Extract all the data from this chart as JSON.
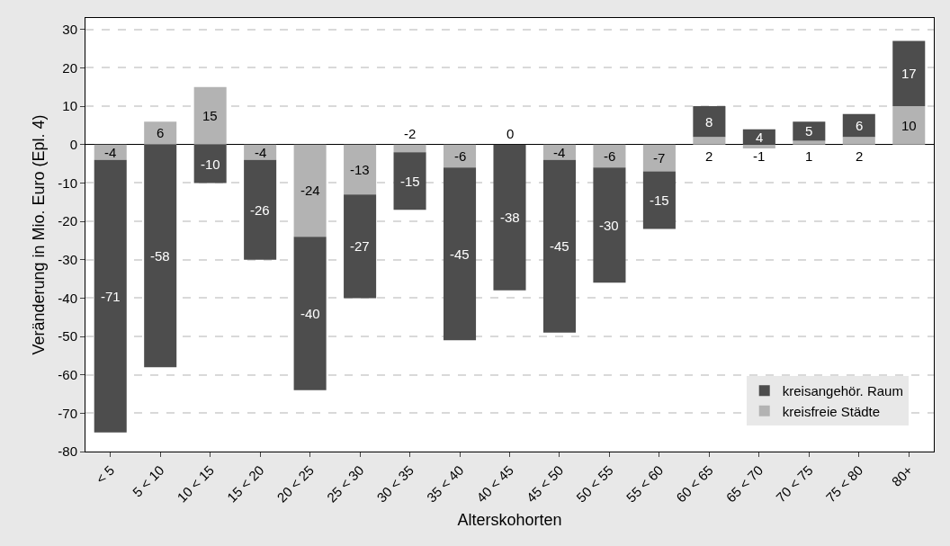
{
  "chart_data": {
    "type": "bar",
    "xlabel": "Alterskohorten",
    "ylabel": "Veränderung in Mio. Euro (Epl. 4)",
    "categories": [
      "< 5",
      "5 < 10",
      "10 < 15",
      "15 < 20",
      "20 < 25",
      "25 < 30",
      "30 < 35",
      "35 < 40",
      "40 < 45",
      "45 < 50",
      "50 < 55",
      "55 < 60",
      "60 < 65",
      "65 < 70",
      "70 < 75",
      "75 < 80",
      "80+"
    ],
    "series": [
      {
        "name": "kreisfreie Städte",
        "color": "#b3b3b3",
        "values": [
          -4,
          6,
          15,
          -4,
          -24,
          -13,
          -2,
          -6,
          0,
          -4,
          -6,
          -7,
          2,
          -1,
          1,
          2,
          10
        ]
      },
      {
        "name": "kreisangehör. Raum",
        "color": "#4d4d4d",
        "values": [
          -71,
          -58,
          -10,
          -26,
          -40,
          -27,
          -15,
          -45,
          -38,
          -45,
          -30,
          -15,
          8,
          4,
          5,
          6,
          17
        ]
      }
    ],
    "stacked": true,
    "data_labels": true,
    "ylim": [
      -80,
      33
    ],
    "yticks": [
      -80,
      -70,
      -60,
      -50,
      -40,
      -30,
      -20,
      -10,
      0,
      10,
      20,
      30
    ],
    "grid": "y",
    "legend": "bottom right"
  }
}
